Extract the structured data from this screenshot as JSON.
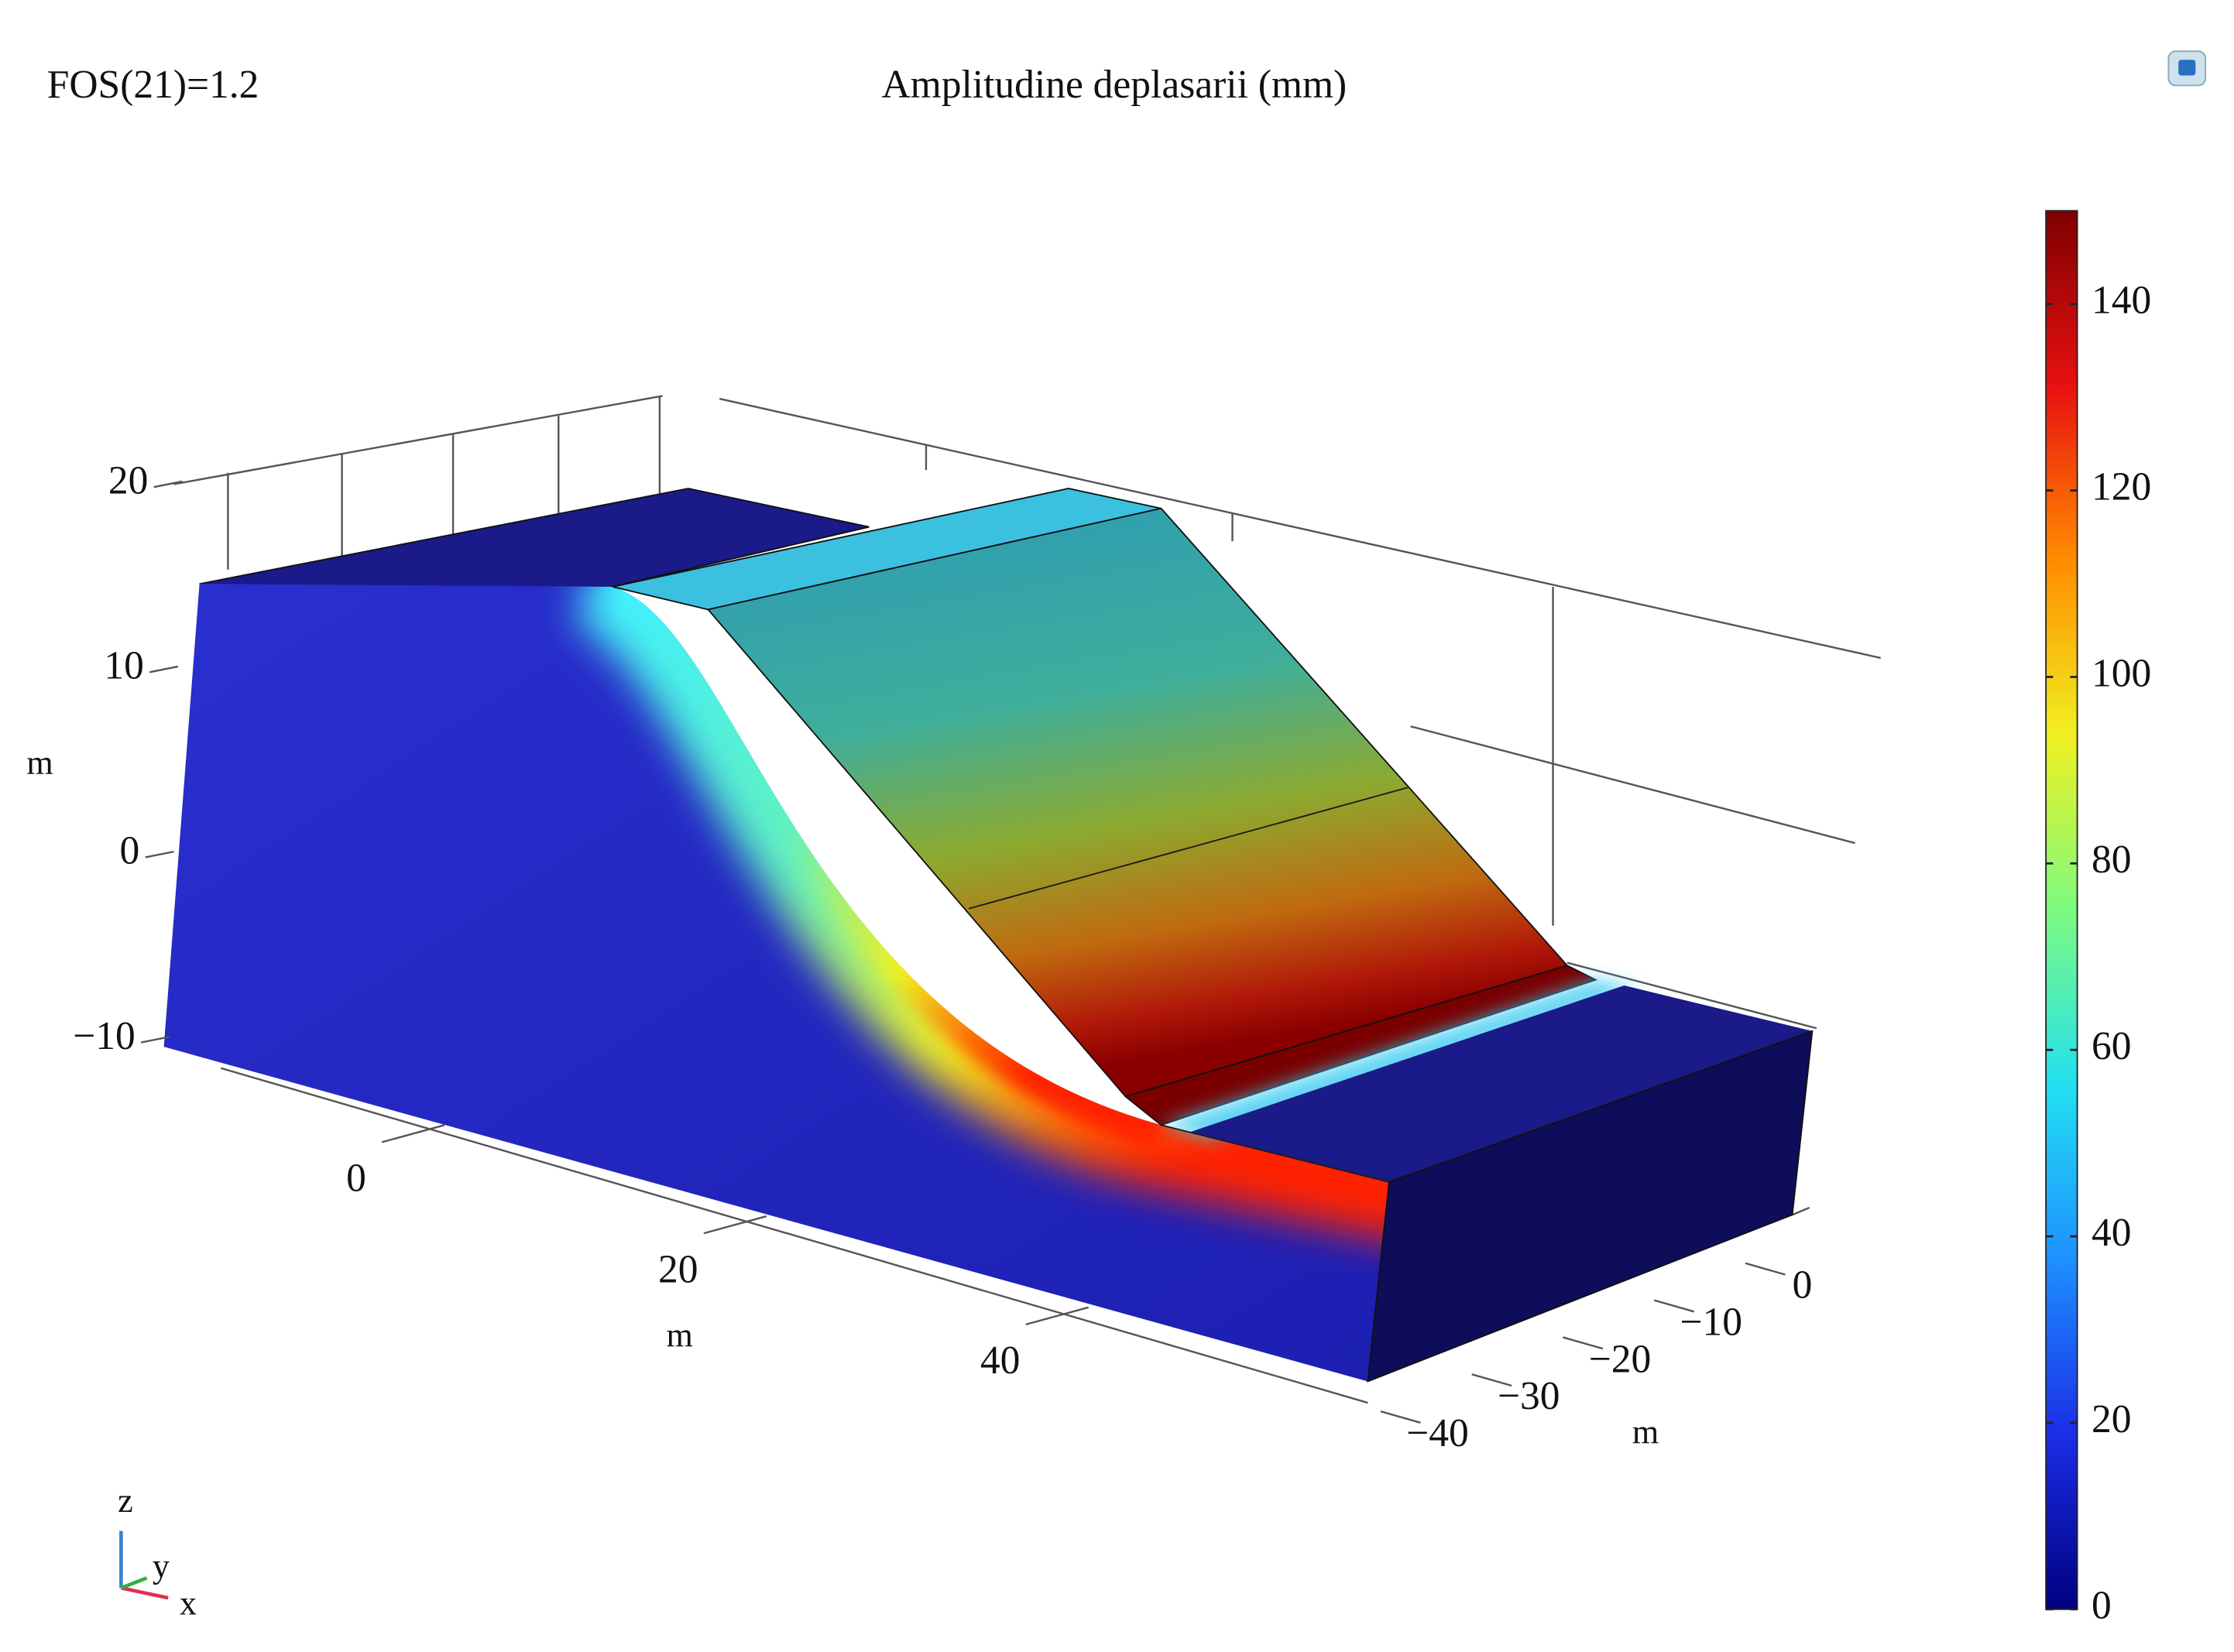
{
  "chart_data": {
    "type": "surface3d",
    "title": "Amplitudine deplasarii (mm)",
    "annotation": "FOS(21)=1.2",
    "zlabel": "m",
    "zticks": [
      {
        "value": -10,
        "label": "−10"
      },
      0,
      10,
      20
    ],
    "xlabel": "m",
    "xticks": [
      0,
      20,
      40
    ],
    "ylabel": "m",
    "yticks": [
      {
        "value": -40,
        "label": "−40"
      },
      {
        "value": -30,
        "label": "−30"
      },
      {
        "value": -20,
        "label": "−20"
      },
      {
        "value": -10,
        "label": "−10"
      },
      0
    ],
    "colorbar": {
      "clim": [
        0,
        150
      ],
      "ticks": [
        0,
        20,
        40,
        60,
        80,
        100,
        120,
        140
      ],
      "colors": [
        "#00007f",
        "#1a2ee6",
        "#1e90ff",
        "#22e0f0",
        "#7dfa80",
        "#f0f020",
        "#ff8c00",
        "#e81010",
        "#7f0000"
      ]
    },
    "triad": [
      "z",
      "y",
      "x"
    ]
  }
}
